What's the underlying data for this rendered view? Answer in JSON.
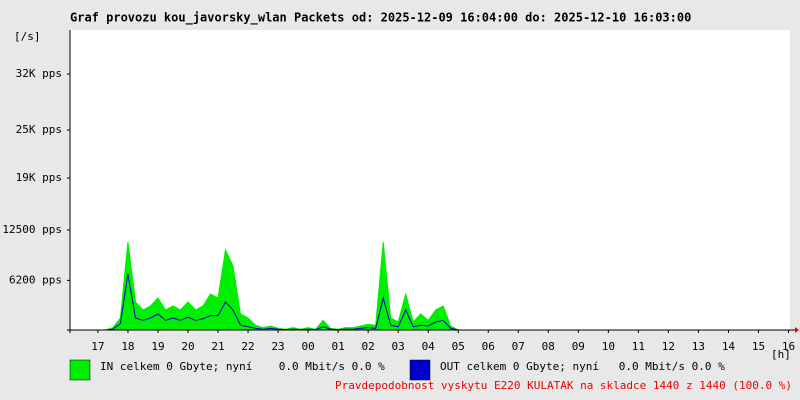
{
  "chart_data": {
    "type": "area",
    "title": "Graf provozu kou_javorsky_wlan Packets od: 2025-12-09 16:04:00 do: 2025-12-10 16:03:00",
    "y_label": "[/s]",
    "x_label": "[h]",
    "x": [
      17.0,
      17.25,
      17.5,
      17.75,
      18.0,
      18.25,
      18.5,
      18.75,
      19.0,
      19.25,
      19.5,
      19.75,
      20.0,
      20.25,
      20.5,
      20.75,
      21.0,
      21.25,
      21.5,
      21.75,
      22.0,
      22.25,
      22.5,
      22.75,
      23.0,
      23.25,
      23.5,
      23.75,
      24.0,
      24.25,
      24.5,
      24.75,
      25.0,
      25.25,
      25.5,
      25.75,
      26.0,
      26.25,
      26.5,
      26.75,
      27.0,
      27.25,
      27.5,
      27.75,
      28.0,
      28.25,
      28.5,
      28.75,
      29.0
    ],
    "series": [
      {
        "name": "IN celkem 0 Gbyte; nyní    0.0 Mbit/s 0.0 %",
        "color": "#00ee00",
        "fill": true,
        "values": [
          0,
          0,
          300,
          1500,
          11000,
          3500,
          2500,
          3000,
          4000,
          2500,
          3000,
          2500,
          3500,
          2500,
          3000,
          4500,
          4000,
          10000,
          8000,
          2000,
          1500,
          600,
          300,
          500,
          200,
          100,
          300,
          100,
          300,
          100,
          1200,
          200,
          100,
          300,
          300,
          500,
          700,
          600,
          11000,
          1500,
          1000,
          4500,
          1000,
          2000,
          1200,
          2500,
          3000,
          500,
          0
        ]
      },
      {
        "name": "OUT celkem 0 Gbyte; nyní   0.0 Mbit/s 0.0 %",
        "color": "#0000cc",
        "fill": false,
        "values": [
          0,
          0,
          100,
          800,
          7000,
          1500,
          1200,
          1500,
          2000,
          1200,
          1500,
          1200,
          1600,
          1200,
          1400,
          1800,
          1800,
          3500,
          2500,
          600,
          400,
          200,
          100,
          200,
          100,
          50,
          100,
          50,
          100,
          50,
          400,
          100,
          50,
          100,
          100,
          200,
          300,
          200,
          4000,
          600,
          400,
          2500,
          400,
          600,
          500,
          1000,
          1200,
          200,
          0
        ]
      }
    ],
    "xlim": [
      16.07,
      40.05
    ],
    "xticks": [
      {
        "value": 17,
        "label": "17"
      },
      {
        "value": 18,
        "label": "18"
      },
      {
        "value": 19,
        "label": "19"
      },
      {
        "value": 20,
        "label": "20"
      },
      {
        "value": 21,
        "label": "21"
      },
      {
        "value": 22,
        "label": "22"
      },
      {
        "value": 23,
        "label": "23"
      },
      {
        "value": 24,
        "label": "00"
      },
      {
        "value": 25,
        "label": "01"
      },
      {
        "value": 26,
        "label": "02"
      },
      {
        "value": 27,
        "label": "03"
      },
      {
        "value": 28,
        "label": "04"
      },
      {
        "value": 29,
        "label": "05"
      },
      {
        "value": 30,
        "label": "06"
      },
      {
        "value": 31,
        "label": "07"
      },
      {
        "value": 32,
        "label": "08"
      },
      {
        "value": 33,
        "label": "09"
      },
      {
        "value": 34,
        "label": "10"
      },
      {
        "value": 35,
        "label": "11"
      },
      {
        "value": 36,
        "label": "12"
      },
      {
        "value": 37,
        "label": "13"
      },
      {
        "value": 38,
        "label": "14"
      },
      {
        "value": 39,
        "label": "15"
      },
      {
        "value": 40,
        "label": "16"
      }
    ],
    "ylim": [
      0,
      37500
    ],
    "yticks": [
      {
        "value": 6200,
        "label": "6200 pps"
      },
      {
        "value": 12500,
        "label": "12500 pps"
      },
      {
        "value": 19000,
        "label": "19K pps"
      },
      {
        "value": 25000,
        "label": "25K pps"
      },
      {
        "value": 32000,
        "label": "32K pps"
      }
    ],
    "grid": false,
    "footer_note": "Pravdepodobnost vyskytu E220 KULATAK na skladce 1440 z 1440 (100.0 %)",
    "footer_color": "#ee0000"
  }
}
